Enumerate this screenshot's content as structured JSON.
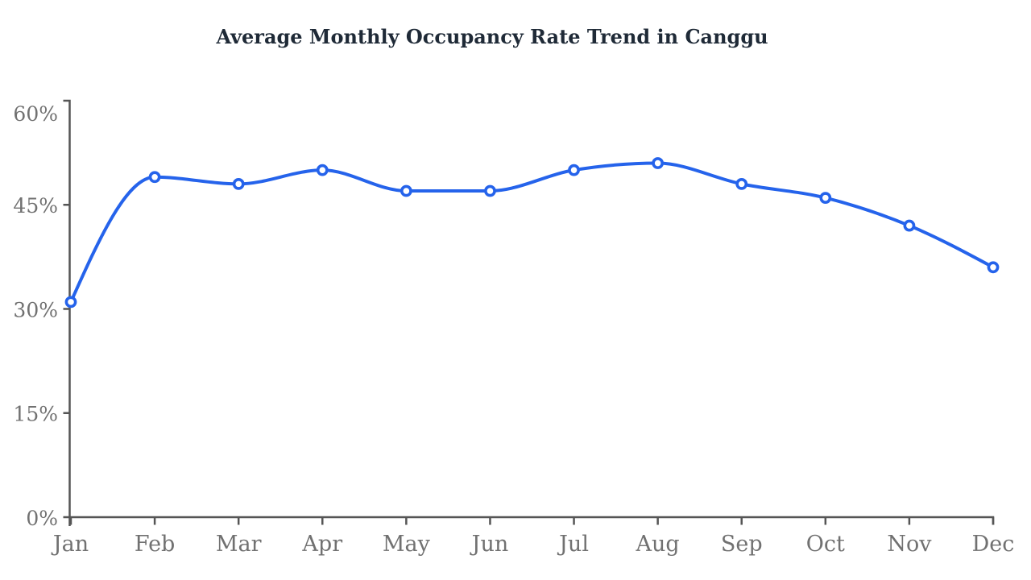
{
  "page": {
    "background": "#ffffff"
  },
  "chart_data": {
    "type": "line",
    "title": "Average Monthly Occupancy Rate Trend in Canggu",
    "categories": [
      "Jan",
      "Feb",
      "Mar",
      "Apr",
      "May",
      "Jun",
      "Jul",
      "Aug",
      "Sep",
      "Oct",
      "Nov",
      "Dec"
    ],
    "values": [
      31,
      49,
      48,
      50,
      47,
      47,
      50,
      51,
      48,
      46,
      42,
      36
    ],
    "unit": "%",
    "xlabel": "",
    "ylabel": "",
    "ylim": [
      0,
      60
    ],
    "yticks": [
      0,
      15,
      30,
      45,
      60
    ],
    "ytick_labels": [
      "0%",
      "15%",
      "30%",
      "45%",
      "60%"
    ],
    "grid": false,
    "legend": false,
    "marker_style": "open-circle",
    "curve": "monotone",
    "line_color": "#2563eb",
    "marker_fill": "#ffffff",
    "axis_color": "#555555",
    "tick_label_color": "#717171",
    "title_color": "#1f2a37"
  }
}
